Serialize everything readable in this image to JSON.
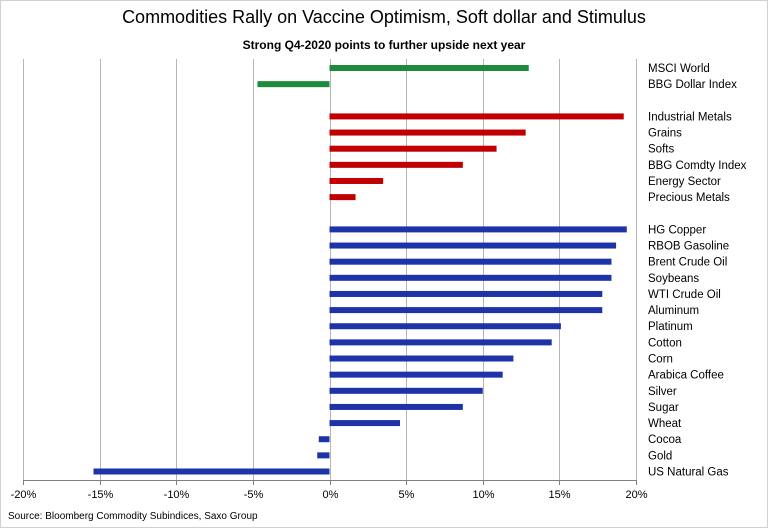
{
  "chart_data": {
    "type": "bar",
    "orientation": "horizontal",
    "title": "Commodities Rally on Vaccine Optimism, Soft dollar and Stimulus",
    "subtitle": "Strong Q4-2020 points to further upside next year",
    "source": "Source: Bloomberg Commodity Subindices, Saxo Group",
    "xlim": [
      -0.2,
      0.2
    ],
    "x_ticks": [
      -0.2,
      -0.15,
      -0.1,
      -0.05,
      0,
      0.05,
      0.1,
      0.15,
      0.2
    ],
    "x_tick_labels": [
      "-20%",
      "-15%",
      "-10%",
      "-5%",
      "0%",
      "5%",
      "10%",
      "15%",
      "20%"
    ],
    "grid": true,
    "legend": false,
    "colors": {
      "green": "#1e8a3c",
      "red": "#c00000",
      "blue": "#1f33a8",
      "grid": "#b4b4b4",
      "axis": "#7f7f7f"
    },
    "categories": [
      {
        "label": "MSCI World",
        "value": 0.13,
        "color": "green"
      },
      {
        "label": "BBG Dollar Index",
        "value": -0.047,
        "color": "green"
      },
      {
        "label": "",
        "value": null,
        "color": null
      },
      {
        "label": "Industrial Metals",
        "value": 0.192,
        "color": "red"
      },
      {
        "label": "Grains",
        "value": 0.128,
        "color": "red"
      },
      {
        "label": "Softs",
        "value": 0.109,
        "color": "red"
      },
      {
        "label": "BBG Comdty Index",
        "value": 0.087,
        "color": "red"
      },
      {
        "label": "Energy Sector",
        "value": 0.035,
        "color": "red"
      },
      {
        "label": "Precious Metals",
        "value": 0.017,
        "color": "red"
      },
      {
        "label": "",
        "value": null,
        "color": null
      },
      {
        "label": "HG Copper",
        "value": 0.194,
        "color": "blue"
      },
      {
        "label": "RBOB Gasoline",
        "value": 0.187,
        "color": "blue"
      },
      {
        "label": "Brent Crude Oil",
        "value": 0.184,
        "color": "blue"
      },
      {
        "label": "Soybeans",
        "value": 0.184,
        "color": "blue"
      },
      {
        "label": "WTI Crude Oil",
        "value": 0.178,
        "color": "blue"
      },
      {
        "label": "Aluminum",
        "value": 0.178,
        "color": "blue"
      },
      {
        "label": "Platinum",
        "value": 0.151,
        "color": "blue"
      },
      {
        "label": "Cotton",
        "value": 0.145,
        "color": "blue"
      },
      {
        "label": "Corn",
        "value": 0.12,
        "color": "blue"
      },
      {
        "label": "Arabica Coffee",
        "value": 0.113,
        "color": "blue"
      },
      {
        "label": "Silver",
        "value": 0.1,
        "color": "blue"
      },
      {
        "label": "Sugar",
        "value": 0.087,
        "color": "blue"
      },
      {
        "label": "Wheat",
        "value": 0.046,
        "color": "blue"
      },
      {
        "label": "Cocoa",
        "value": -0.007,
        "color": "blue"
      },
      {
        "label": "Gold",
        "value": -0.008,
        "color": "blue"
      },
      {
        "label": "US Natural Gas",
        "value": -0.154,
        "color": "blue"
      }
    ]
  }
}
